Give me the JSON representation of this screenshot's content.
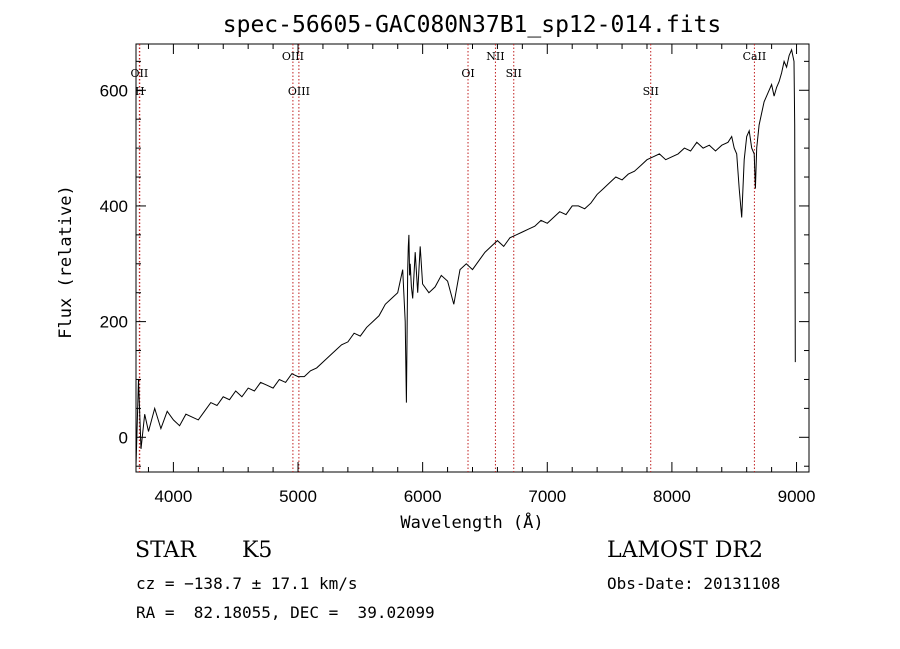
{
  "chart_data": {
    "type": "line",
    "title": "spec-56605-GAC080N37B1_sp12-014.fits",
    "xlabel": "Wavelength (Å)",
    "ylabel": "Flux (relative)",
    "xlim": [
      3700,
      9100
    ],
    "ylim": [
      -60,
      680
    ],
    "x_ticks": [
      4000,
      5000,
      6000,
      7000,
      8000,
      9000
    ],
    "y_ticks": [
      0,
      200,
      400,
      600
    ],
    "x_tick_labels": [
      "4000",
      "5000",
      "6000",
      "7000",
      "8000",
      "9000"
    ],
    "y_tick_labels": [
      "0",
      "200",
      "400",
      "600"
    ],
    "grid": false,
    "line_color": "#000000",
    "marker_color": "#c02020",
    "series": [
      {
        "x": [
          3700,
          3720,
          3740,
          3770,
          3800,
          3850,
          3900,
          3950,
          4000,
          4050,
          4100,
          4150,
          4200,
          4250,
          4300,
          4350,
          4400,
          4450,
          4500,
          4550,
          4600,
          4650,
          4700,
          4750,
          4800,
          4850,
          4900,
          4950,
          5000,
          5050,
          5100,
          5150,
          5200,
          5250,
          5300,
          5350,
          5400,
          5450,
          5500,
          5550,
          5600,
          5650,
          5700,
          5750,
          5800,
          5820,
          5840,
          5860,
          5870,
          5880,
          5885,
          5890,
          5895,
          5900,
          5910,
          5920,
          5940,
          5960,
          5980,
          6000,
          6050,
          6100,
          6150,
          6200,
          6250,
          6300,
          6350,
          6400,
          6450,
          6500,
          6550,
          6600,
          6650,
          6700,
          6750,
          6800,
          6850,
          6900,
          6950,
          7000,
          7050,
          7100,
          7150,
          7200,
          7250,
          7300,
          7350,
          7400,
          7450,
          7500,
          7550,
          7600,
          7650,
          7700,
          7750,
          7800,
          7850,
          7900,
          7950,
          8000,
          8050,
          8100,
          8150,
          8200,
          8250,
          8300,
          8350,
          8400,
          8450,
          8480,
          8500,
          8520,
          8540,
          8560,
          8580,
          8600,
          8620,
          8640,
          8660,
          8670,
          8680,
          8700,
          8720,
          8740,
          8760,
          8780,
          8800,
          8820,
          8840,
          8860,
          8880,
          8900,
          8920,
          8940,
          8960,
          8980,
          8985,
          8990
        ],
        "y": [
          -50,
          100,
          -20,
          40,
          10,
          50,
          15,
          45,
          30,
          20,
          40,
          35,
          30,
          45,
          60,
          55,
          70,
          65,
          80,
          70,
          85,
          80,
          95,
          90,
          85,
          100,
          95,
          110,
          105,
          105,
          115,
          120,
          130,
          140,
          150,
          160,
          165,
          180,
          175,
          190,
          200,
          210,
          230,
          240,
          250,
          270,
          290,
          200,
          60,
          290,
          330,
          350,
          280,
          300,
          260,
          240,
          320,
          250,
          330,
          265,
          250,
          260,
          280,
          270,
          230,
          290,
          300,
          290,
          305,
          320,
          330,
          340,
          330,
          345,
          350,
          355,
          360,
          365,
          375,
          370,
          380,
          390,
          385,
          400,
          400,
          395,
          405,
          420,
          430,
          440,
          450,
          445,
          455,
          460,
          470,
          480,
          485,
          490,
          480,
          485,
          490,
          500,
          495,
          510,
          500,
          505,
          495,
          505,
          510,
          520,
          500,
          490,
          430,
          380,
          480,
          520,
          530,
          500,
          490,
          430,
          500,
          540,
          560,
          580,
          590,
          600,
          610,
          590,
          605,
          615,
          630,
          650,
          640,
          660,
          670,
          650,
          540,
          130
        ]
      }
    ],
    "line_markers": [
      {
        "x": 3727,
        "label": "OII",
        "row": 1
      },
      {
        "x": 3730,
        "label": "H",
        "row": 2
      },
      {
        "x": 4959,
        "label": "OIII",
        "row": 0
      },
      {
        "x": 5007,
        "label": "OIII",
        "row": 2
      },
      {
        "x": 6364,
        "label": "OI",
        "row": 1
      },
      {
        "x": 6584,
        "label": "NII",
        "row": 0
      },
      {
        "x": 6731,
        "label": "SII",
        "row": 1
      },
      {
        "x": 7830,
        "label": "SII",
        "row": 2
      },
      {
        "x": 8662,
        "label": "CaII",
        "row": 0
      }
    ]
  },
  "info": {
    "object_class": "STAR",
    "subclass": "K5",
    "survey": "LAMOST DR2",
    "redshift_line": "cz = −138.7 ± 17.1 km/s",
    "obs_date_line": "Obs-Date: 20131108",
    "coords_line": "RA =  82.18055, DEC =  39.02099"
  }
}
